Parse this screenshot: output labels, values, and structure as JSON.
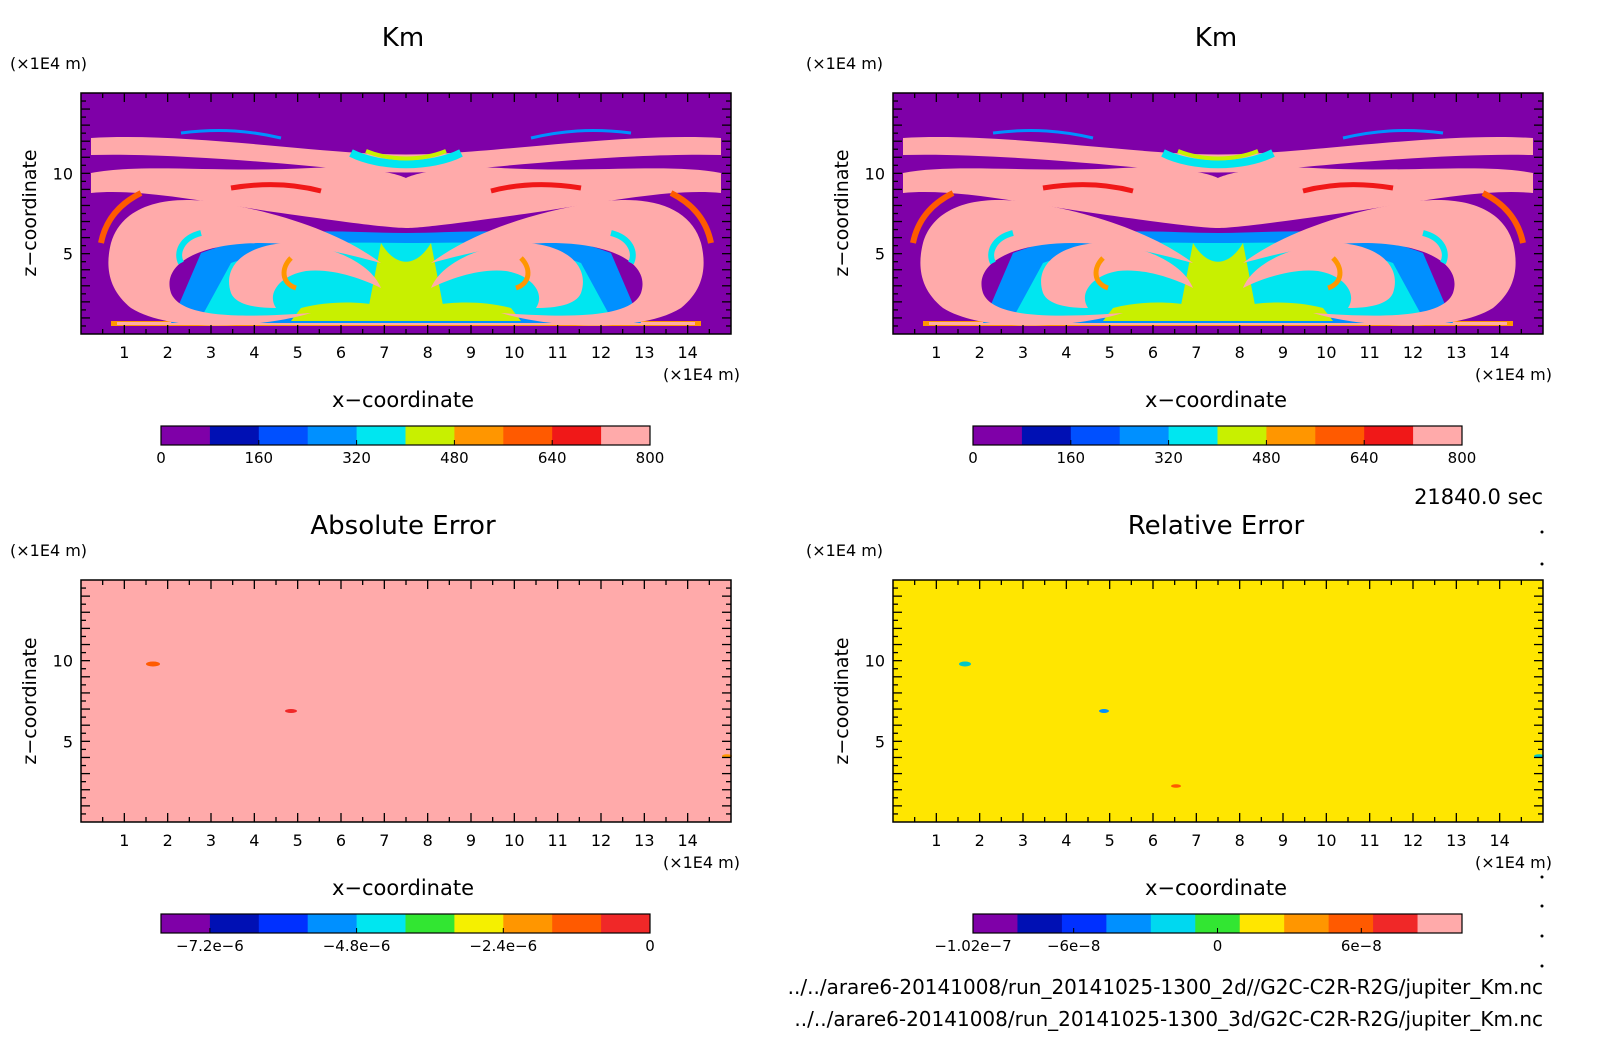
{
  "time_label": "21840.0 sec",
  "files": {
    "line1": "../../arare6-20141008/run_20141025-1300_2d//G2C-C2R-R2G/jupiter_Km.nc",
    "line2": "../../arare6-20141008/run_20141025-1300_3d/G2C-C2R-R2G/jupiter_Km.nc"
  },
  "colors": {
    "km_levels": [
      "#7f00a8",
      "#0010b4",
      "#0050ff",
      "#0090ff",
      "#00e6f0",
      "#c8f000",
      "#ff9600",
      "#ff5a00",
      "#f01818",
      "#ffaaaa"
    ],
    "abs_err_levels": [
      "#7f00a8",
      "#0010b4",
      "#0030ff",
      "#0090ff",
      "#00e6f0",
      "#32e632",
      "#f5f000",
      "#ff9600",
      "#ff5a00",
      "#f02828"
    ],
    "rel_err_levels": [
      "#7f00a8",
      "#0010b4",
      "#0030ff",
      "#0090ff",
      "#00d8f0",
      "#32e632",
      "#ffe600",
      "#ff9600",
      "#ff5a00",
      "#f02828",
      "#ffaaaa"
    ]
  },
  "chart_data": [
    {
      "type": "heatmap",
      "title": "Km",
      "xlabel": "x−coordinate",
      "ylabel": "z−coordinate",
      "x_unit": "(×1E4 m)",
      "y_unit": "(×1E4 m)",
      "xlim": [
        0,
        15
      ],
      "ylim": [
        0,
        15
      ],
      "x_ticks": [
        "1",
        "2",
        "3",
        "4",
        "5",
        "6",
        "7",
        "8",
        "9",
        "10",
        "11",
        "12",
        "13",
        "14"
      ],
      "y_ticks": [
        "5",
        "10"
      ],
      "colorbar": {
        "min": 0,
        "max": 800,
        "levels": 10,
        "tick_labels": [
          "0",
          "160",
          "320",
          "480",
          "640",
          "800"
        ]
      }
    },
    {
      "type": "heatmap",
      "title": "Km",
      "xlabel": "x−coordinate",
      "ylabel": "z−coordinate",
      "x_unit": "(×1E4 m)",
      "y_unit": "(×1E4 m)",
      "xlim": [
        0,
        15
      ],
      "ylim": [
        0,
        15
      ],
      "x_ticks": [
        "1",
        "2",
        "3",
        "4",
        "5",
        "6",
        "7",
        "8",
        "9",
        "10",
        "11",
        "12",
        "13",
        "14"
      ],
      "y_ticks": [
        "5",
        "10"
      ],
      "colorbar": {
        "min": 0,
        "max": 800,
        "levels": 10,
        "tick_labels": [
          "0",
          "160",
          "320",
          "480",
          "640",
          "800"
        ]
      }
    },
    {
      "type": "heatmap",
      "title": "Absolute Error",
      "xlabel": "x−coordinate",
      "ylabel": "z−coordinate",
      "x_unit": "(×1E4 m)",
      "y_unit": "(×1E4 m)",
      "xlim": [
        0,
        15
      ],
      "ylim": [
        0,
        15
      ],
      "x_ticks": [
        "1",
        "2",
        "3",
        "4",
        "5",
        "6",
        "7",
        "8",
        "9",
        "10",
        "11",
        "12",
        "13",
        "14"
      ],
      "y_ticks": [
        "5",
        "10"
      ],
      "field_value": 0,
      "colorbar": {
        "min": -8e-06,
        "max": 0,
        "levels": 10,
        "tick_labels": [
          "−7.2e−6",
          "−4.8e−6",
          "−2.4e−6",
          "0"
        ]
      }
    },
    {
      "type": "heatmap",
      "title": "Relative Error",
      "xlabel": "x−coordinate",
      "ylabel": "z−coordinate",
      "x_unit": "(×1E4 m)",
      "y_unit": "(×1E4 m)",
      "xlim": [
        0,
        15
      ],
      "ylim": [
        0,
        15
      ],
      "x_ticks": [
        "1",
        "2",
        "3",
        "4",
        "5",
        "6",
        "7",
        "8",
        "9",
        "10",
        "11",
        "12",
        "13",
        "14"
      ],
      "y_ticks": [
        "5",
        "10"
      ],
      "field_value": 0,
      "colorbar": {
        "min": -1.02e-07,
        "max": 1.02e-07,
        "levels": 11,
        "tick_labels": [
          "−1.02e−7",
          "−6e−8",
          "0",
          "6e−8"
        ]
      }
    }
  ]
}
